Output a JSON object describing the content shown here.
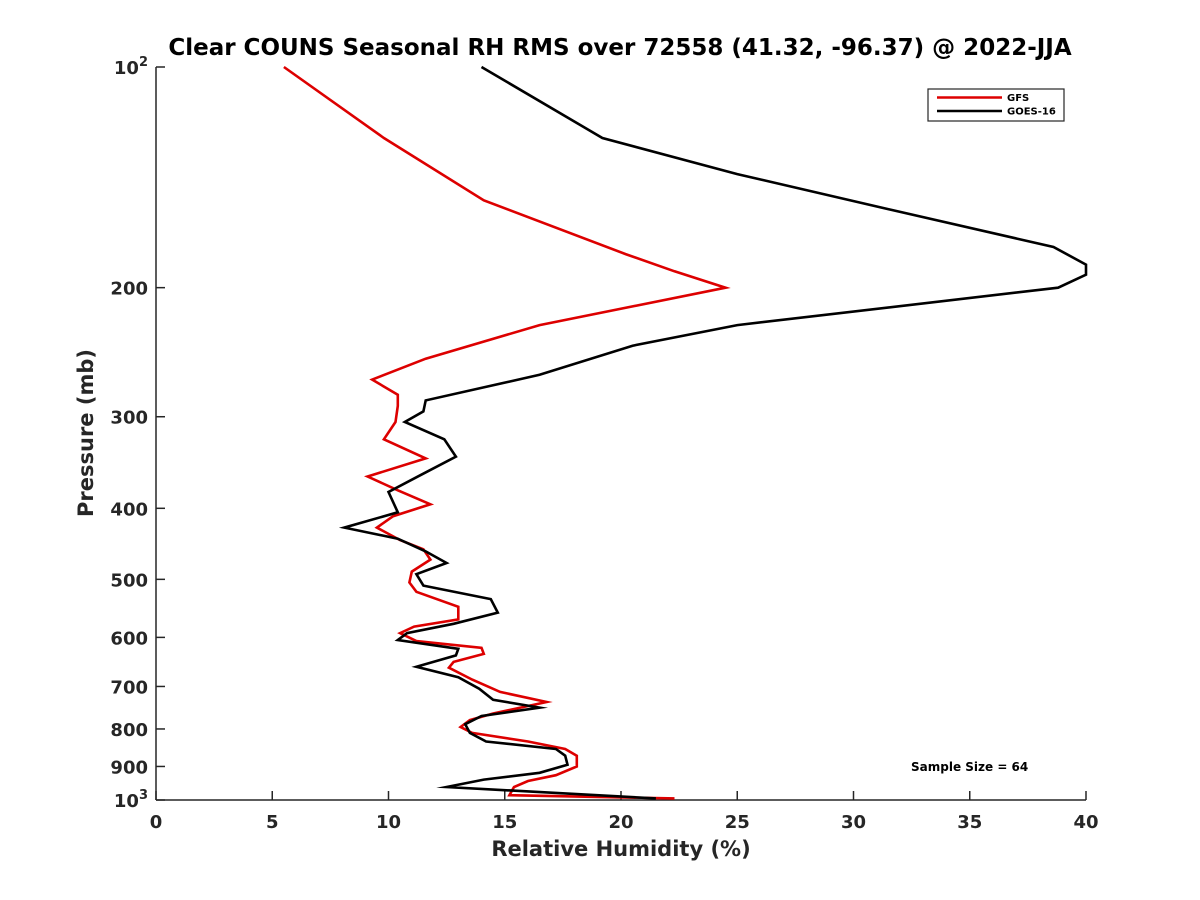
{
  "chart_data": {
    "type": "line",
    "title": "Clear COUNS Seasonal RH RMS over 72558 (41.32, -96.37) @ 2022-JJA",
    "xlabel": "Relative Humidity (%)",
    "ylabel": "Pressure (mb)",
    "xlim": [
      0,
      40
    ],
    "ylim": [
      100,
      1000
    ],
    "y_scale": "log",
    "y_reversed": true,
    "grid": false,
    "x_ticks": [
      0,
      5,
      10,
      15,
      20,
      25,
      30,
      35,
      40
    ],
    "x_tick_labels": [
      "0",
      "5",
      "10",
      "15",
      "20",
      "25",
      "30",
      "35",
      "40"
    ],
    "y_ticks": [
      {
        "value": 100,
        "base": "10",
        "exp": "2"
      },
      {
        "value": 200,
        "label": "200"
      },
      {
        "value": 300,
        "label": "300"
      },
      {
        "value": 400,
        "label": "400"
      },
      {
        "value": 500,
        "label": "500"
      },
      {
        "value": 600,
        "label": "600"
      },
      {
        "value": 700,
        "label": "700"
      },
      {
        "value": 800,
        "label": "800"
      },
      {
        "value": 900,
        "label": "900"
      },
      {
        "value": 1000,
        "base": "10",
        "exp": "3"
      }
    ],
    "legend_position": "top-right",
    "series": [
      {
        "name": "GFS",
        "color": "#dd0000",
        "points": [
          [
            5.5,
            100
          ],
          [
            9.8,
            125
          ],
          [
            14.1,
            152
          ],
          [
            20.2,
            180
          ],
          [
            22.3,
            190
          ],
          [
            24.5,
            200
          ],
          [
            16.5,
            225
          ],
          [
            11.6,
            250
          ],
          [
            9.3,
            267
          ],
          [
            10.4,
            280
          ],
          [
            10.4,
            290
          ],
          [
            10.3,
            305
          ],
          [
            9.8,
            322
          ],
          [
            11.6,
            342
          ],
          [
            9.1,
            362
          ],
          [
            10.4,
            378
          ],
          [
            11.8,
            395
          ],
          [
            10.2,
            410
          ],
          [
            9.5,
            425
          ],
          [
            10.5,
            442
          ],
          [
            11.5,
            455
          ],
          [
            11.8,
            470
          ],
          [
            11.0,
            488
          ],
          [
            10.9,
            505
          ],
          [
            11.2,
            520
          ],
          [
            13.0,
            545
          ],
          [
            13.0,
            567
          ],
          [
            11.1,
            580
          ],
          [
            10.5,
            592
          ],
          [
            11.2,
            607
          ],
          [
            14.0,
            620
          ],
          [
            14.1,
            632
          ],
          [
            12.8,
            648
          ],
          [
            12.6,
            660
          ],
          [
            13.6,
            685
          ],
          [
            14.8,
            712
          ],
          [
            16.8,
            735
          ],
          [
            14.5,
            762
          ],
          [
            13.5,
            778
          ],
          [
            13.1,
            795
          ],
          [
            13.6,
            810
          ],
          [
            16.0,
            832
          ],
          [
            17.6,
            852
          ],
          [
            18.1,
            870
          ],
          [
            18.1,
            900
          ],
          [
            17.2,
            925
          ],
          [
            16.0,
            942
          ],
          [
            15.4,
            960
          ],
          [
            15.2,
            985
          ],
          [
            22.3,
            995
          ]
        ]
      },
      {
        "name": "GOES-16",
        "color": "#000000",
        "points": [
          [
            14.0,
            100
          ],
          [
            19.2,
            125
          ],
          [
            25.0,
            140
          ],
          [
            31.0,
            155
          ],
          [
            38.6,
            176
          ],
          [
            40.0,
            186
          ],
          [
            40.0,
            192
          ],
          [
            38.8,
            200
          ],
          [
            25.0,
            225
          ],
          [
            20.5,
            240
          ],
          [
            16.5,
            263
          ],
          [
            11.6,
            285
          ],
          [
            11.5,
            295
          ],
          [
            10.7,
            305
          ],
          [
            12.4,
            322
          ],
          [
            12.9,
            340
          ],
          [
            11.4,
            360
          ],
          [
            10.0,
            380
          ],
          [
            10.4,
            405
          ],
          [
            8.1,
            425
          ],
          [
            10.4,
            440
          ],
          [
            11.6,
            458
          ],
          [
            12.5,
            475
          ],
          [
            11.2,
            492
          ],
          [
            11.5,
            510
          ],
          [
            14.4,
            532
          ],
          [
            14.7,
            555
          ],
          [
            12.8,
            575
          ],
          [
            10.8,
            592
          ],
          [
            10.4,
            605
          ],
          [
            13.0,
            622
          ],
          [
            12.9,
            635
          ],
          [
            11.2,
            658
          ],
          [
            13.0,
            680
          ],
          [
            13.9,
            705
          ],
          [
            14.5,
            730
          ],
          [
            16.5,
            748
          ],
          [
            14.0,
            768
          ],
          [
            13.3,
            788
          ],
          [
            13.5,
            810
          ],
          [
            14.2,
            832
          ],
          [
            17.2,
            852
          ],
          [
            17.6,
            870
          ],
          [
            17.7,
            895
          ],
          [
            16.5,
            918
          ],
          [
            14.1,
            938
          ],
          [
            12.5,
            960
          ],
          [
            21.5,
            995
          ]
        ]
      }
    ],
    "annotation": "Sample Size = 64"
  }
}
